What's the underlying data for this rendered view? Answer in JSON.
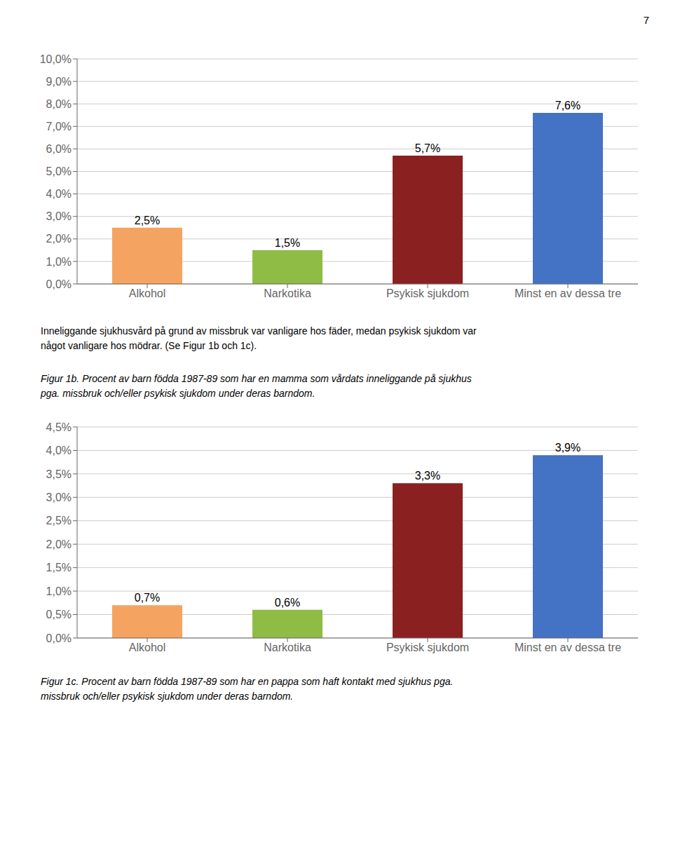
{
  "chart_data": [
    {
      "type": "bar",
      "title": "Figur 1b. Procent av barn födda 1987-89 som har en mamma som vårdats inneliggande på sjukhus\npga. missbruk och/eller psykisk sjukdom under deras barndom.",
      "annotations": [
        "7",
        "Inneliggande sjukhusvård på grund av missbruk var vanligare hos fäder, medan psykisk sjukdom var\nnågot vanligare hos mödrar. (Se Figur 1b och 1c)."
      ],
      "categories": [
        "Alkohol",
        "Narkotika",
        "Psykisk sjukdom",
        "Minst en av dessa tre"
      ],
      "values": [
        2.5,
        1.5,
        5.7,
        7.6
      ],
      "value_labels": [
        "2,5%",
        "1,5%",
        "5,7%",
        "7,6%"
      ],
      "data_labels": true,
      "colors": [
        "#F4A460",
        "#8FBC45",
        "#8B2020",
        "#4472C4"
      ],
      "ylim": [
        0,
        10.0
      ],
      "yticks": [
        {
          "value": 0,
          "label": "0,0%"
        },
        {
          "value": 1.0,
          "label": "1,0%"
        },
        {
          "value": 2.0,
          "label": "2,0%"
        },
        {
          "value": 3.0,
          "label": "3,0%"
        },
        {
          "value": 4.0,
          "label": "4,0%"
        },
        {
          "value": 5.0,
          "label": "5,0%"
        },
        {
          "value": 6.0,
          "label": "6,0%"
        },
        {
          "value": 7.0,
          "label": "7,0%"
        },
        {
          "value": 8.0,
          "label": "8,0%"
        },
        {
          "value": 9.0,
          "label": "9,0%"
        },
        {
          "value": 10.0,
          "label": "10,0%"
        }
      ],
      "grid": true
    },
    {
      "type": "bar",
      "title": "Figur 1c. Procent av barn födda 1987-89 som har en pappa som haft kontakt med sjukhus pga.\nmissbruk och/eller psykisk sjukdom under deras barndom.",
      "categories": [
        "Alkohol",
        "Narkotika",
        "Psykisk sjukdom",
        "Minst en av dessa tre"
      ],
      "values": [
        0.7,
        0.6,
        3.3,
        3.9
      ],
      "value_labels": [
        "0,7%",
        "0,6%",
        "3,3%",
        "3,9%"
      ],
      "data_labels": true,
      "colors": [
        "#F4A460",
        "#8FBC45",
        "#8B2020",
        "#4472C4"
      ],
      "ylim": [
        0,
        4.5
      ],
      "yticks": [
        {
          "value": 0,
          "label": "0,0%"
        },
        {
          "value": 0.5,
          "label": "0,5%"
        },
        {
          "value": 1.0,
          "label": "1,0%"
        },
        {
          "value": 1.5,
          "label": "1,5%"
        },
        {
          "value": 2.0,
          "label": "2,0%"
        },
        {
          "value": 2.5,
          "label": "2,5%"
        },
        {
          "value": 3.0,
          "label": "3,0%"
        },
        {
          "value": 3.5,
          "label": "3,5%"
        },
        {
          "value": 4.0,
          "label": "4,0%"
        },
        {
          "value": 4.5,
          "label": "4,5%"
        }
      ],
      "grid": true
    }
  ]
}
